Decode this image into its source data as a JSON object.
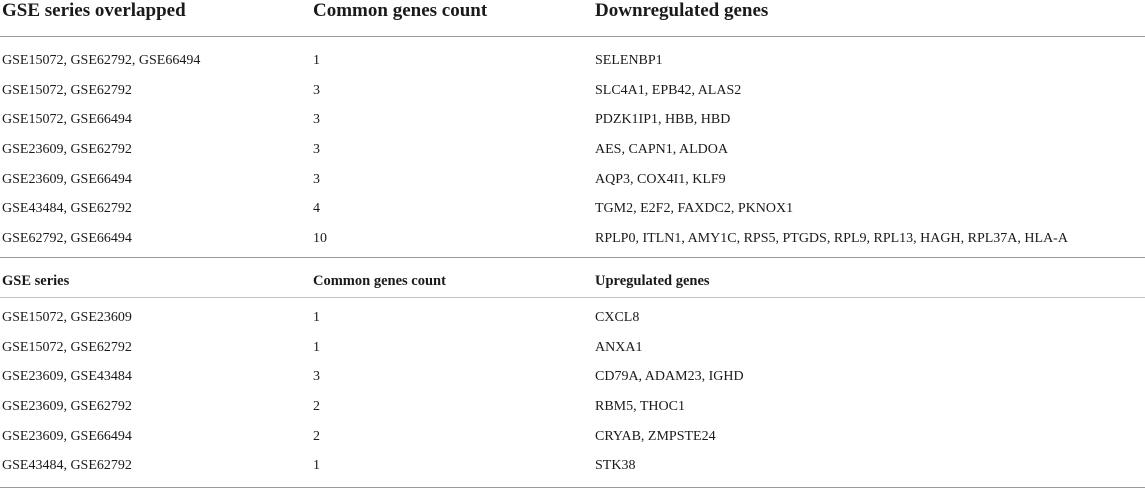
{
  "downregulated": {
    "headers": [
      "GSE series overlapped",
      "Common genes count",
      "Downregulated genes"
    ],
    "rows": [
      [
        "GSE15072, GSE62792, GSE66494",
        "1",
        "SELENBP1"
      ],
      [
        "GSE15072, GSE62792",
        "3",
        "SLC4A1, EPB42, ALAS2"
      ],
      [
        "GSE15072, GSE66494",
        "3",
        "PDZK1IP1, HBB, HBD"
      ],
      [
        "GSE23609, GSE62792",
        "3",
        "AES, CAPN1, ALDOA"
      ],
      [
        "GSE23609, GSE66494",
        "3",
        "AQP3, COX4I1, KLF9"
      ],
      [
        "GSE43484, GSE62792",
        "4",
        "TGM2, E2F2, FAXDC2, PKNOX1"
      ],
      [
        "GSE62792, GSE66494",
        "10",
        "RPLP0, ITLN1, AMY1C, RPS5, PTGDS, RPL9, RPL13, HAGH, RPL37A, HLA-A"
      ]
    ]
  },
  "upregulated": {
    "headers": [
      "GSE series",
      "Common genes count",
      "Upregulated genes"
    ],
    "rows": [
      [
        "GSE15072, GSE23609",
        "1",
        "CXCL8"
      ],
      [
        "GSE15072, GSE62792",
        "1",
        "ANXA1"
      ],
      [
        "GSE23609, GSE43484",
        "3",
        "CD79A, ADAM23, IGHD"
      ],
      [
        "GSE23609, GSE62792",
        "2",
        "RBM5, THOC1"
      ],
      [
        "GSE23609, GSE66494",
        "2",
        "CRYAB, ZMPSTE24"
      ],
      [
        "GSE43484, GSE62792",
        "1",
        "STK38"
      ]
    ]
  }
}
